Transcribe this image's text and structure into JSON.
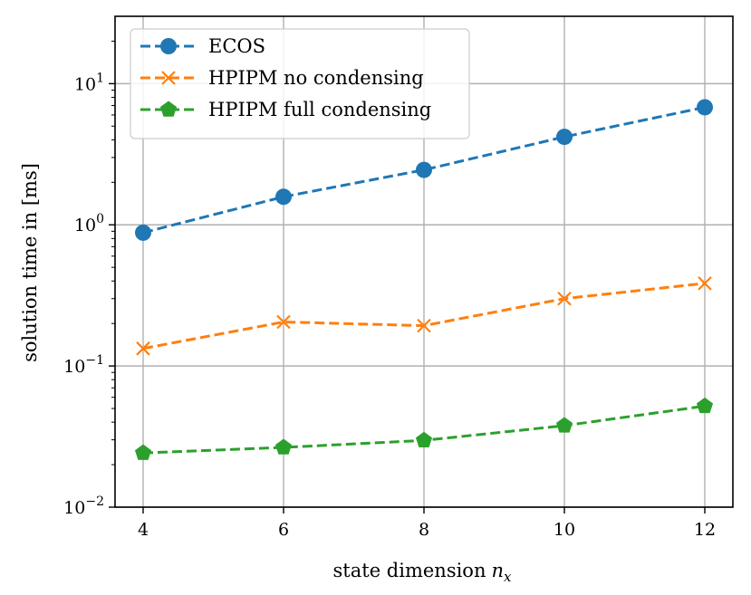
{
  "chart_data": {
    "type": "line",
    "title": "",
    "xlabel": "state dimension",
    "xlabel_math": "n",
    "xlabel_math_sub": "x",
    "ylabel": "solution time in [ms]",
    "yscale": "log",
    "xlim": [
      3.6,
      12.4
    ],
    "ylim": [
      0.01,
      30
    ],
    "grid": true,
    "legend_position": "top-left",
    "x": [
      4,
      6,
      8,
      10,
      12
    ],
    "x_ticks": [
      {
        "value": 4,
        "label": "4"
      },
      {
        "value": 6,
        "label": "6"
      },
      {
        "value": 8,
        "label": "8"
      },
      {
        "value": 10,
        "label": "10"
      },
      {
        "value": 12,
        "label": "12"
      }
    ],
    "y_ticks": [
      {
        "value": 0.01,
        "base": "10",
        "exp": "−2"
      },
      {
        "value": 0.1,
        "base": "10",
        "exp": "−1"
      },
      {
        "value": 1,
        "base": "10",
        "exp": "0"
      },
      {
        "value": 10,
        "base": "10",
        "exp": "1"
      }
    ],
    "series": [
      {
        "name": "ECOS",
        "color": "#1f77b4",
        "marker": "circle",
        "values": [
          0.88,
          1.58,
          2.45,
          4.2,
          6.8
        ]
      },
      {
        "name": "HPIPM no condensing",
        "color": "#ff7f0e",
        "marker": "x",
        "values": [
          0.133,
          0.205,
          0.193,
          0.3,
          0.385
        ]
      },
      {
        "name": "HPIPM full condensing",
        "color": "#2ca02c",
        "marker": "pentagon",
        "values": [
          0.0242,
          0.0265,
          0.0297,
          0.0378,
          0.052
        ]
      }
    ]
  }
}
